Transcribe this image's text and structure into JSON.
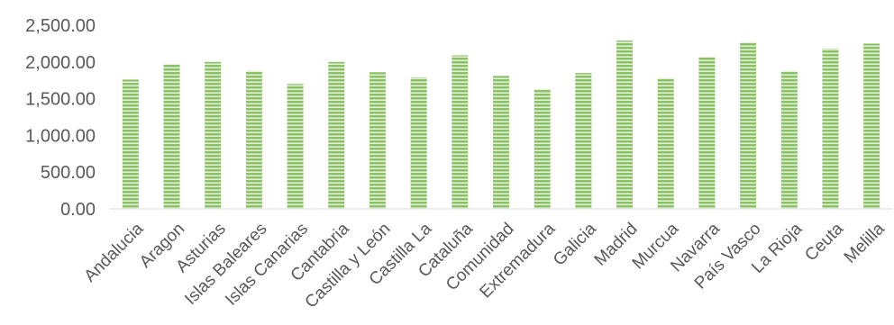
{
  "chart_data": {
    "type": "bar",
    "categories": [
      "Andalucia",
      "Aragon",
      "Asturias",
      "Islas Baleares",
      "Islas Canarias",
      "Cantabria",
      "Castilla y León",
      "Castilla La",
      "Cataluña",
      "Comunidad",
      "Extremadura",
      "Galicia",
      "Madrid",
      "Murcua",
      "Navarra",
      "País Vasco",
      "La Rioja",
      "Ceuta",
      "Melilla"
    ],
    "values": [
      1760,
      1970,
      2000,
      1880,
      1700,
      2000,
      1860,
      1790,
      2090,
      1810,
      1630,
      1850,
      2290,
      1780,
      2070,
      2270,
      1880,
      2180,
      2250
    ],
    "title": "",
    "xlabel": "",
    "ylabel": "",
    "ylim": [
      0,
      2500
    ],
    "yticks": [
      "0.00",
      "500.00",
      "1,000.00",
      "1,500.00",
      "2,000.00",
      "2,500.00"
    ],
    "grid": false,
    "legend": "none",
    "bar_color": "#8cc168",
    "bar_stripe_color": "#e4f1d9"
  }
}
